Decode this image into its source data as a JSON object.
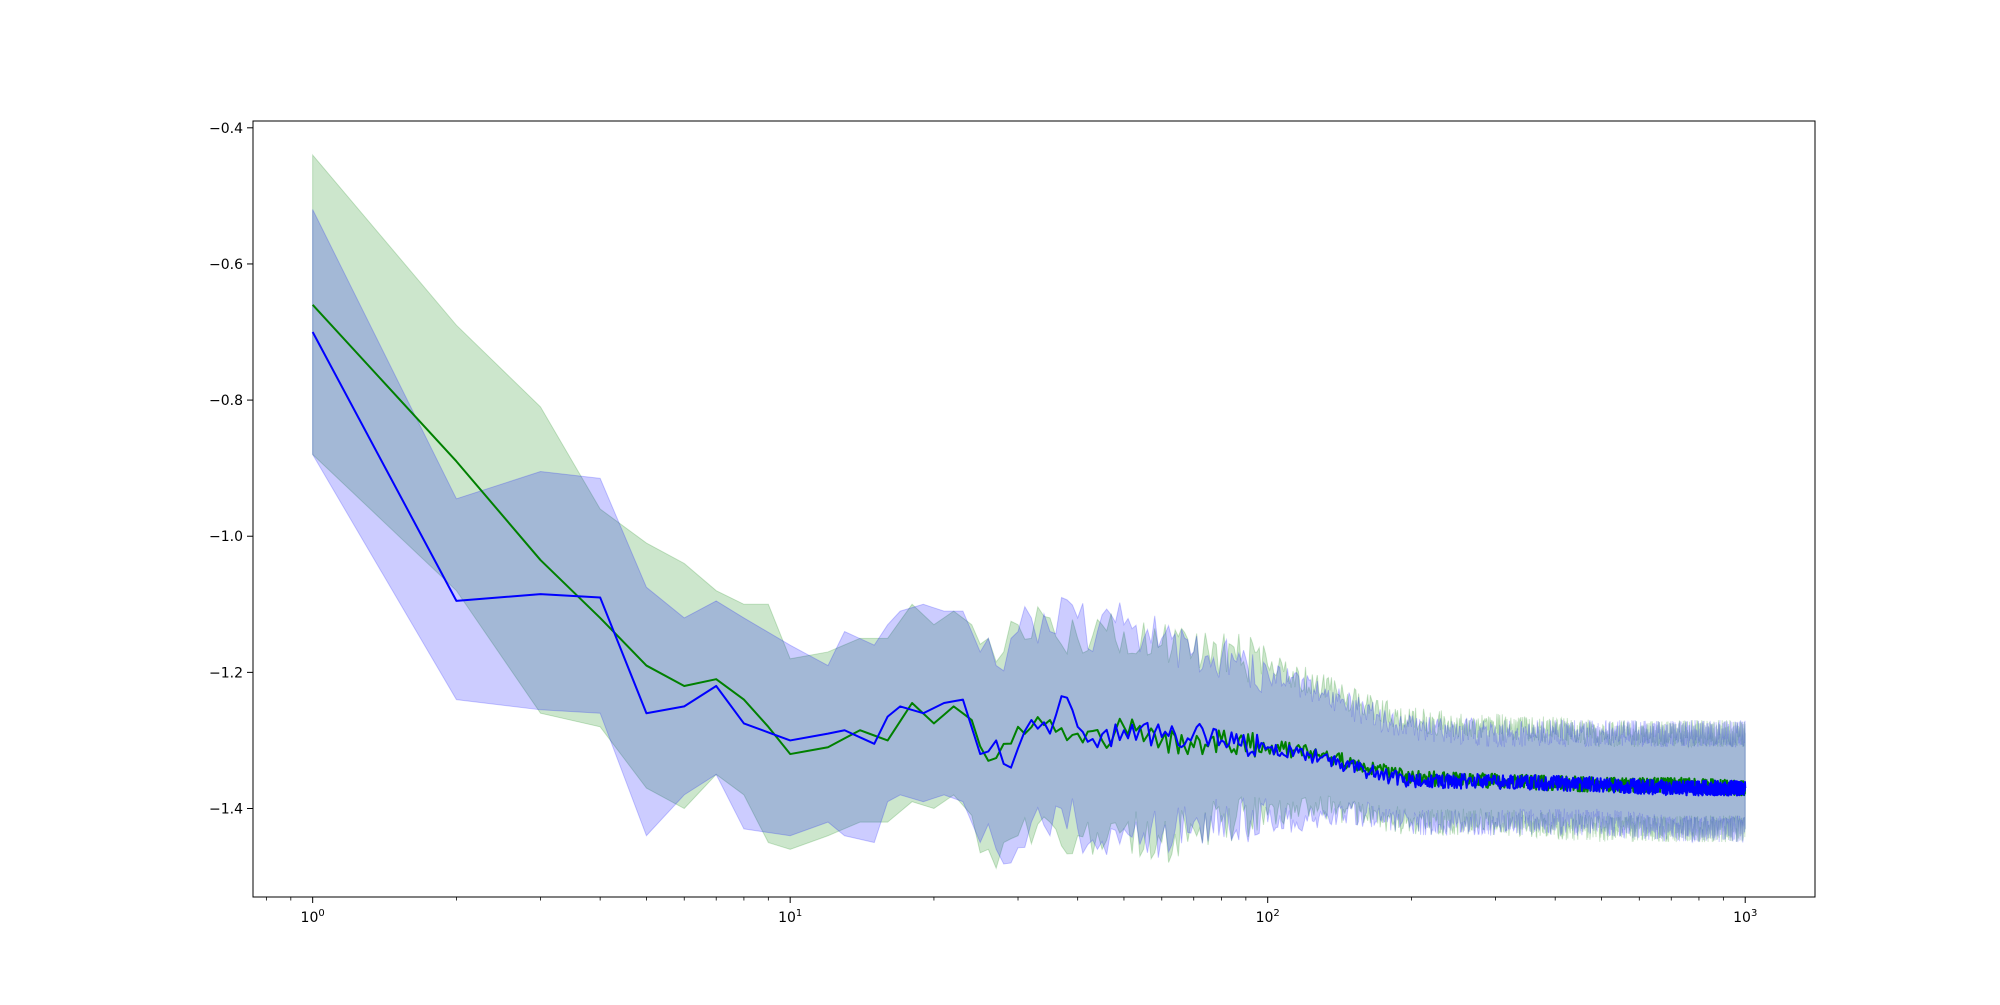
{
  "chart_data": {
    "type": "line",
    "title": "",
    "xlabel": "",
    "ylabel": "",
    "x_scale": "log",
    "x_range": [
      0.75,
      1400
    ],
    "y_range": [
      -1.53,
      -0.39
    ],
    "grid": false,
    "legend": "none",
    "x_ticks": [
      {
        "value": 1,
        "base": "10",
        "exp": "0"
      },
      {
        "value": 10,
        "base": "10",
        "exp": "1"
      },
      {
        "value": 100,
        "base": "10",
        "exp": "2"
      },
      {
        "value": 1000,
        "base": "10",
        "exp": "3"
      }
    ],
    "y_ticks": [
      {
        "value": -0.4,
        "label": "−0.4"
      },
      {
        "value": -0.6,
        "label": "−0.6"
      },
      {
        "value": -0.8,
        "label": "−0.8"
      },
      {
        "value": -1.0,
        "label": "−1.0"
      },
      {
        "value": -1.2,
        "label": "−1.2"
      },
      {
        "value": -1.4,
        "label": "−1.4"
      }
    ],
    "series": [
      {
        "color": "#008000",
        "band_color": "#008000",
        "points": [
          {
            "x": 1,
            "mean": -0.66,
            "lower": -0.88,
            "upper": -0.44
          },
          {
            "x": 2,
            "mean": -0.89,
            "lower": -1.08,
            "upper": -0.69
          },
          {
            "x": 3,
            "mean": -1.035,
            "lower": -1.26,
            "upper": -0.81
          },
          {
            "x": 4,
            "mean": -1.12,
            "lower": -1.28,
            "upper": -0.96
          },
          {
            "x": 5,
            "mean": -1.19,
            "lower": -1.37,
            "upper": -1.01
          },
          {
            "x": 6,
            "mean": -1.22,
            "lower": -1.4,
            "upper": -1.04
          },
          {
            "x": 7,
            "mean": -1.21,
            "lower": -1.35,
            "upper": -1.08
          },
          {
            "x": 8,
            "mean": -1.24,
            "lower": -1.38,
            "upper": -1.1
          },
          {
            "x": 9,
            "mean": -1.28,
            "lower": -1.45,
            "upper": -1.1
          },
          {
            "x": 10,
            "mean": -1.32,
            "lower": -1.46,
            "upper": -1.18
          },
          {
            "x": 12,
            "mean": -1.31,
            "lower": -1.44,
            "upper": -1.17
          },
          {
            "x": 14,
            "mean": -1.285,
            "lower": -1.42,
            "upper": -1.15
          },
          {
            "x": 16,
            "mean": -1.3,
            "lower": -1.42,
            "upper": -1.15
          },
          {
            "x": 18,
            "mean": -1.245,
            "lower": -1.39,
            "upper": -1.1
          },
          {
            "x": 20,
            "mean": -1.275,
            "lower": -1.4,
            "upper": -1.13
          },
          {
            "x": 22,
            "mean": -1.25,
            "lower": -1.38,
            "upper": -1.11
          },
          {
            "x": 24,
            "mean": -1.27,
            "lower": -1.41,
            "upper": -1.13
          },
          {
            "x": 26,
            "mean": -1.33,
            "lower": -1.46,
            "upper": -1.15
          },
          {
            "x": 28,
            "mean": -1.305,
            "lower": -1.45,
            "upper": -1.17
          },
          {
            "x": 30,
            "mean": -1.28,
            "lower": -1.44,
            "upper": -1.13
          },
          {
            "x": 35,
            "mean": -1.27,
            "lower": -1.42,
            "upper": -1.12
          },
          {
            "x": 40,
            "mean": -1.29,
            "lower": -1.44,
            "upper": -1.15
          },
          {
            "x": 45,
            "mean": -1.3,
            "lower": -1.46,
            "upper": -1.13
          },
          {
            "x": 50,
            "mean": -1.28,
            "lower": -1.43,
            "upper": -1.14
          },
          {
            "x": 60,
            "mean": -1.3,
            "lower": -1.45,
            "upper": -1.16
          },
          {
            "x": 70,
            "mean": -1.31,
            "lower": -1.43,
            "upper": -1.17
          },
          {
            "x": 80,
            "mean": -1.3,
            "lower": -1.42,
            "upper": -1.17
          },
          {
            "x": 100,
            "mean": -1.31,
            "lower": -1.41,
            "upper": -1.19
          },
          {
            "x": 130,
            "mean": -1.32,
            "lower": -1.4,
            "upper": -1.22
          },
          {
            "x": 160,
            "mean": -1.34,
            "lower": -1.41,
            "upper": -1.25
          },
          {
            "x": 200,
            "mean": -1.355,
            "lower": -1.42,
            "upper": -1.27
          },
          {
            "x": 300,
            "mean": -1.36,
            "lower": -1.42,
            "upper": -1.28
          },
          {
            "x": 500,
            "mean": -1.365,
            "lower": -1.43,
            "upper": -1.29
          },
          {
            "x": 700,
            "mean": -1.365,
            "lower": -1.43,
            "upper": -1.29
          },
          {
            "x": 1000,
            "mean": -1.37,
            "lower": -1.43,
            "upper": -1.29
          }
        ]
      },
      {
        "color": "#0000ff",
        "band_color": "#0000ff",
        "points": [
          {
            "x": 1,
            "mean": -0.7,
            "lower": -0.88,
            "upper": -0.52
          },
          {
            "x": 2,
            "mean": -1.095,
            "lower": -1.24,
            "upper": -0.945
          },
          {
            "x": 3,
            "mean": -1.085,
            "lower": -1.255,
            "upper": -0.905
          },
          {
            "x": 4,
            "mean": -1.09,
            "lower": -1.26,
            "upper": -0.915
          },
          {
            "x": 5,
            "mean": -1.26,
            "lower": -1.44,
            "upper": -1.075
          },
          {
            "x": 6,
            "mean": -1.25,
            "lower": -1.38,
            "upper": -1.12
          },
          {
            "x": 7,
            "mean": -1.22,
            "lower": -1.35,
            "upper": -1.095
          },
          {
            "x": 8,
            "mean": -1.275,
            "lower": -1.43,
            "upper": -1.12
          },
          {
            "x": 10,
            "mean": -1.3,
            "lower": -1.44,
            "upper": -1.16
          },
          {
            "x": 12,
            "mean": -1.29,
            "lower": -1.42,
            "upper": -1.19
          },
          {
            "x": 13,
            "mean": -1.285,
            "lower": -1.44,
            "upper": -1.14
          },
          {
            "x": 15,
            "mean": -1.305,
            "lower": -1.45,
            "upper": -1.16
          },
          {
            "x": 16,
            "mean": -1.265,
            "lower": -1.39,
            "upper": -1.13
          },
          {
            "x": 17,
            "mean": -1.25,
            "lower": -1.38,
            "upper": -1.11
          },
          {
            "x": 19,
            "mean": -1.26,
            "lower": -1.39,
            "upper": -1.1
          },
          {
            "x": 21,
            "mean": -1.245,
            "lower": -1.38,
            "upper": -1.11
          },
          {
            "x": 23,
            "mean": -1.24,
            "lower": -1.39,
            "upper": -1.11
          },
          {
            "x": 25,
            "mean": -1.32,
            "lower": -1.45,
            "upper": -1.17
          },
          {
            "x": 27,
            "mean": -1.3,
            "lower": -1.46,
            "upper": -1.19
          },
          {
            "x": 29,
            "mean": -1.34,
            "lower": -1.48,
            "upper": -1.15
          },
          {
            "x": 32,
            "mean": -1.27,
            "lower": -1.42,
            "upper": -1.12
          },
          {
            "x": 35,
            "mean": -1.29,
            "lower": -1.44,
            "upper": -1.14
          },
          {
            "x": 37,
            "mean": -1.235,
            "lower": -1.4,
            "upper": -1.09
          },
          {
            "x": 40,
            "mean": -1.28,
            "lower": -1.43,
            "upper": -1.12
          },
          {
            "x": 44,
            "mean": -1.31,
            "lower": -1.46,
            "upper": -1.14
          },
          {
            "x": 50,
            "mean": -1.285,
            "lower": -1.43,
            "upper": -1.13
          },
          {
            "x": 60,
            "mean": -1.295,
            "lower": -1.44,
            "upper": -1.15
          },
          {
            "x": 70,
            "mean": -1.29,
            "lower": -1.42,
            "upper": -1.17
          },
          {
            "x": 80,
            "mean": -1.3,
            "lower": -1.41,
            "upper": -1.18
          },
          {
            "x": 100,
            "mean": -1.31,
            "lower": -1.42,
            "upper": -1.2
          },
          {
            "x": 130,
            "mean": -1.325,
            "lower": -1.41,
            "upper": -1.23
          },
          {
            "x": 160,
            "mean": -1.345,
            "lower": -1.41,
            "upper": -1.26
          },
          {
            "x": 200,
            "mean": -1.36,
            "lower": -1.42,
            "upper": -1.28
          },
          {
            "x": 300,
            "mean": -1.36,
            "lower": -1.42,
            "upper": -1.29
          },
          {
            "x": 500,
            "mean": -1.365,
            "lower": -1.42,
            "upper": -1.29
          },
          {
            "x": 700,
            "mean": -1.37,
            "lower": -1.43,
            "upper": -1.29
          },
          {
            "x": 1000,
            "mean": -1.37,
            "lower": -1.43,
            "upper": -1.29
          }
        ]
      }
    ]
  }
}
